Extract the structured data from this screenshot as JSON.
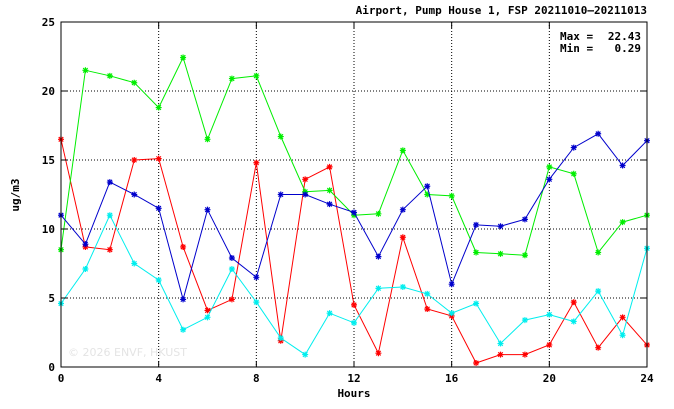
{
  "chart_data": {
    "type": "line",
    "title": "Airport, Pump House 1, FSP 20211010–20211013",
    "xlabel": "Hours",
    "ylabel": "ug/m3",
    "xlim": [
      0,
      24
    ],
    "ylim": [
      0,
      25
    ],
    "x_ticks": [
      0,
      4,
      8,
      12,
      16,
      20,
      24
    ],
    "y_ticks": [
      0,
      5,
      10,
      15,
      20,
      25
    ],
    "grid": true,
    "x": [
      0,
      1,
      2,
      3,
      4,
      5,
      6,
      7,
      8,
      9,
      10,
      11,
      12,
      13,
      14,
      15,
      16,
      17,
      18,
      19,
      20,
      21,
      22,
      23,
      24
    ],
    "series": [
      {
        "color": "#ff0000",
        "values": [
          16.5,
          8.7,
          8.5,
          15.0,
          15.1,
          8.7,
          4.1,
          4.9,
          14.8,
          1.9,
          13.6,
          14.5,
          4.5,
          1.0,
          9.4,
          4.2,
          3.7,
          0.29,
          0.9,
          0.9,
          1.6,
          4.7,
          1.4,
          3.6,
          1.6
        ]
      },
      {
        "color": "#00ee00",
        "values": [
          8.5,
          21.5,
          21.1,
          20.6,
          18.8,
          22.43,
          16.5,
          20.9,
          21.1,
          16.7,
          12.7,
          12.8,
          11.0,
          11.1,
          15.7,
          12.5,
          12.4,
          8.3,
          8.2,
          8.1,
          14.5,
          14.0,
          8.3,
          10.5,
          11.0
        ]
      },
      {
        "color": "#0000cc",
        "values": [
          11.0,
          8.9,
          13.4,
          12.5,
          11.5,
          4.9,
          11.4,
          7.9,
          6.5,
          12.5,
          12.5,
          11.8,
          11.2,
          8.0,
          11.4,
          13.1,
          6.0,
          10.3,
          10.2,
          10.7,
          13.6,
          15.9,
          16.9,
          14.6,
          16.4
        ]
      },
      {
        "color": "#00eeee",
        "values": [
          4.6,
          7.1,
          11.0,
          7.5,
          6.3,
          2.7,
          3.6,
          7.1,
          4.7,
          2.1,
          0.9,
          3.9,
          3.2,
          5.7,
          5.8,
          5.3,
          3.9,
          4.6,
          1.7,
          3.4,
          3.8,
          3.3,
          5.5,
          2.3,
          8.6
        ]
      }
    ],
    "annotations": {
      "max_label": "Max =",
      "max_value": "22.43",
      "min_label": "Min =",
      "min_value": "0.29",
      "watermark": "© 2026 ENVF, HKUST"
    }
  }
}
